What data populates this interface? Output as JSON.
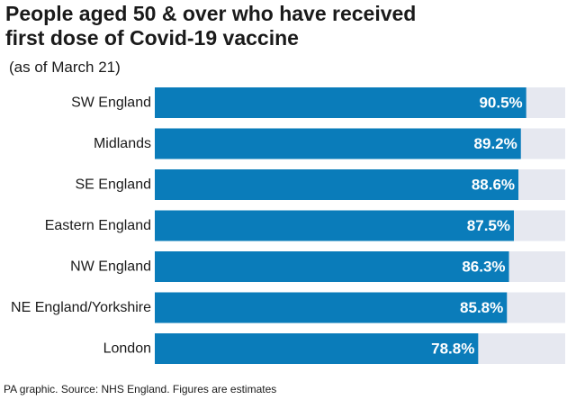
{
  "title_line1": "People aged 50 & over who have received",
  "title_line2": "first dose of Covid-19 vaccine",
  "subtitle": "(as of March 21)",
  "source": "PA graphic. Source: NHS England. Figures are estimates",
  "colors": {
    "bar": "#0a7cba",
    "track": "#e6e8f0",
    "value_text": "#ffffff"
  },
  "chart_data": {
    "type": "bar",
    "orientation": "horizontal",
    "title": "People aged 50 & over who have received first dose of Covid-19 vaccine",
    "subtitle": "(as of March 21)",
    "categories": [
      "SW England",
      "Midlands",
      "SE England",
      "Eastern England",
      "NW England",
      "NE England/Yorkshire",
      "London"
    ],
    "values": [
      90.5,
      89.2,
      88.6,
      87.5,
      86.3,
      85.8,
      78.8
    ],
    "value_labels": [
      "90.5%",
      "89.2%",
      "88.6%",
      "87.5%",
      "86.3%",
      "85.8%",
      "78.8%"
    ],
    "unit": "%",
    "xlim": [
      0,
      100
    ],
    "grid": false,
    "legend": "none"
  }
}
